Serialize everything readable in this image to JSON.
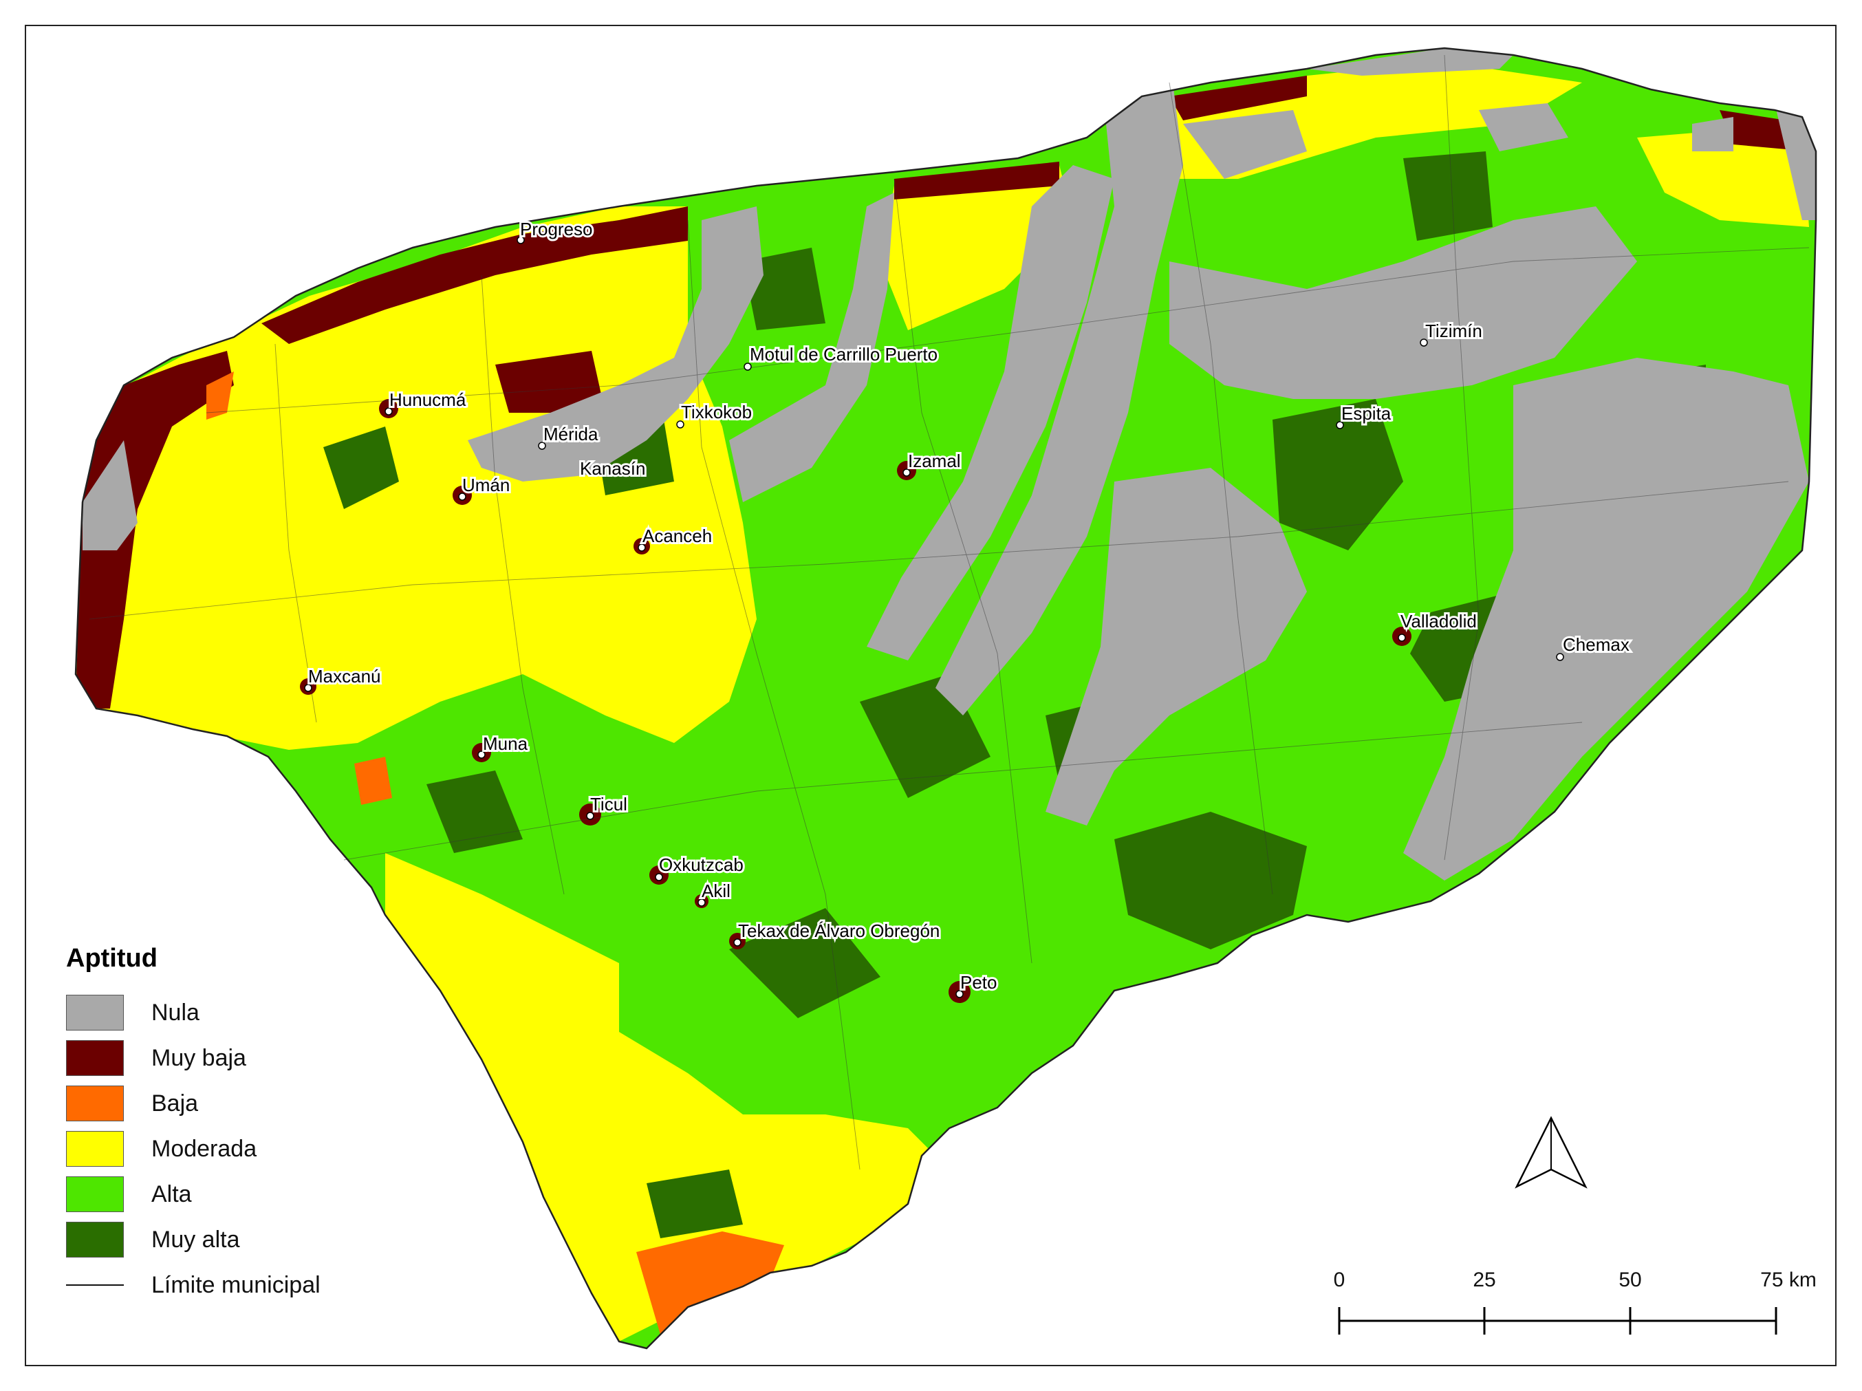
{
  "legend": {
    "title": "Aptitud",
    "classes": [
      {
        "label": "Nula",
        "color": "#a9a9a9"
      },
      {
        "label": "Muy baja",
        "color": "#6b0000"
      },
      {
        "label": "Baja",
        "color": "#ff6a00"
      },
      {
        "label": "Moderada",
        "color": "#ffff00"
      },
      {
        "label": "Alta",
        "color": "#4ee600"
      },
      {
        "label": "Muy alta",
        "color": "#2a6e00"
      }
    ],
    "boundary_label": "Límite municipal"
  },
  "cities": [
    {
      "name": "Progreso"
    },
    {
      "name": "Motul de Carrillo Puerto"
    },
    {
      "name": "Tizimín"
    },
    {
      "name": "Hunucmá"
    },
    {
      "name": "Tixkokob"
    },
    {
      "name": "Espita"
    },
    {
      "name": "Mérida"
    },
    {
      "name": "Izamal"
    },
    {
      "name": "Kanasín"
    },
    {
      "name": "Umán"
    },
    {
      "name": "Acanceh"
    },
    {
      "name": "Valladolid"
    },
    {
      "name": "Chemax"
    },
    {
      "name": "Maxcanú"
    },
    {
      "name": "Muna"
    },
    {
      "name": "Ticul"
    },
    {
      "name": "Oxkutzcab"
    },
    {
      "name": "Akil"
    },
    {
      "name": "Tekax de Álvaro Obregón"
    },
    {
      "name": "Peto"
    }
  ],
  "scale_bar": {
    "ticks": [
      "0",
      "25",
      "50",
      "75 km"
    ]
  },
  "north_arrow": {
    "icon": "north-arrow-icon"
  }
}
